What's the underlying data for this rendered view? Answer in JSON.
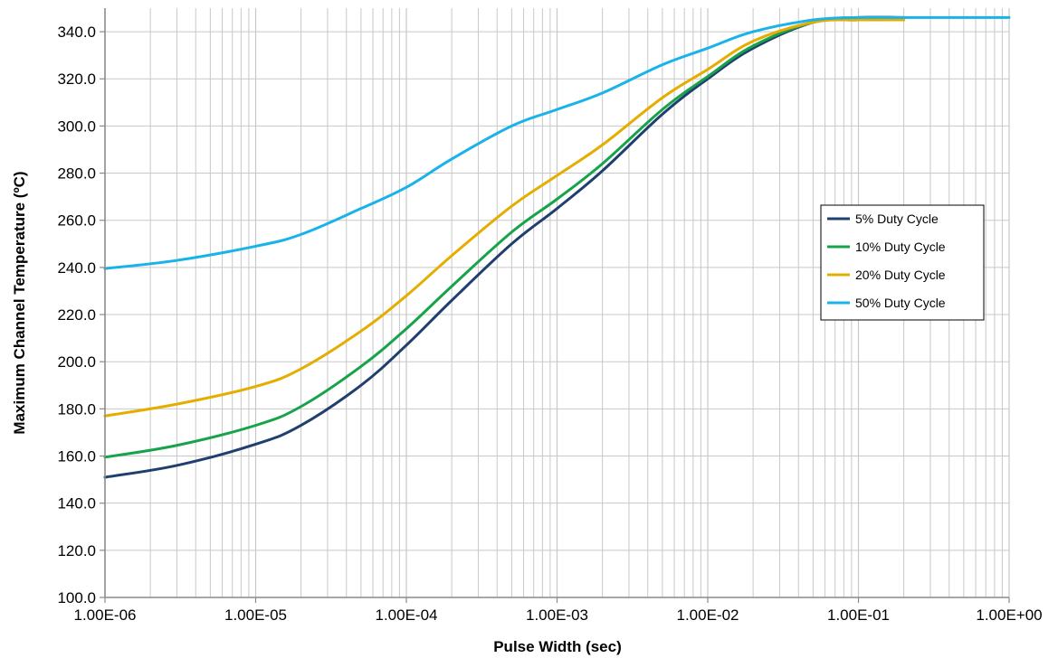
{
  "chart_data": {
    "type": "line",
    "xlabel": "Pulse Width (sec)",
    "ylabel": "Maximum Channel Temperature (ºC)",
    "x_scale": "log",
    "xlim": [
      1e-06,
      1
    ],
    "ylim": [
      100,
      350
    ],
    "x_tick_labels": [
      "1.00E-06",
      "1.00E-05",
      "1.00E-04",
      "1.00E-03",
      "1.00E-02",
      "1.00E-01",
      "1.00E+00"
    ],
    "y_tick_labels": [
      "100.0",
      "120.0",
      "140.0",
      "160.0",
      "180.0",
      "200.0",
      "220.0",
      "240.0",
      "260.0",
      "280.0",
      "300.0",
      "320.0",
      "340.0"
    ],
    "y_ticks": [
      100,
      120,
      140,
      160,
      180,
      200,
      220,
      240,
      260,
      280,
      300,
      320,
      340
    ],
    "grid": true,
    "legend_position": "right",
    "series": [
      {
        "name": "5% Duty Cycle",
        "color": "#1f3f6e",
        "x": [
          1e-06,
          3e-06,
          1e-05,
          2e-05,
          5e-05,
          0.0001,
          0.0002,
          0.0005,
          0.001,
          0.002,
          0.005,
          0.01,
          0.02,
          0.05,
          0.1,
          0.2
        ],
        "y": [
          151,
          156,
          165,
          173,
          190,
          207,
          226,
          250,
          265,
          281,
          305,
          320,
          333,
          344,
          346,
          346
        ]
      },
      {
        "name": "10% Duty Cycle",
        "color": "#16a34a",
        "x": [
          1e-06,
          3e-06,
          1e-05,
          2e-05,
          5e-05,
          0.0001,
          0.0002,
          0.0005,
          0.001,
          0.002,
          0.005,
          0.01,
          0.02,
          0.05,
          0.1,
          0.2
        ],
        "y": [
          159.5,
          164.5,
          173,
          181,
          198,
          214,
          232,
          255,
          269,
          284,
          307,
          321,
          334,
          344,
          345,
          345
        ]
      },
      {
        "name": "20% Duty Cycle",
        "color": "#e5ad00",
        "x": [
          1e-06,
          3e-06,
          1e-05,
          2e-05,
          5e-05,
          0.0001,
          0.0002,
          0.0005,
          0.001,
          0.002,
          0.005,
          0.01,
          0.02,
          0.05,
          0.1,
          0.2
        ],
        "y": [
          177,
          182,
          189.5,
          197,
          213,
          228,
          245,
          266,
          279,
          292,
          312,
          324,
          336,
          344,
          345,
          345
        ]
      },
      {
        "name": "50% Duty Cycle",
        "color": "#19b3ea",
        "x": [
          1e-06,
          3e-06,
          1e-05,
          2e-05,
          5e-05,
          0.0001,
          0.0002,
          0.0005,
          0.001,
          0.002,
          0.005,
          0.01,
          0.02,
          0.05,
          0.1,
          0.2,
          1
        ],
        "y": [
          239.5,
          243,
          249,
          254,
          265,
          274,
          286,
          300,
          307,
          314,
          326,
          333,
          340,
          345,
          346,
          346,
          346
        ]
      }
    ]
  }
}
